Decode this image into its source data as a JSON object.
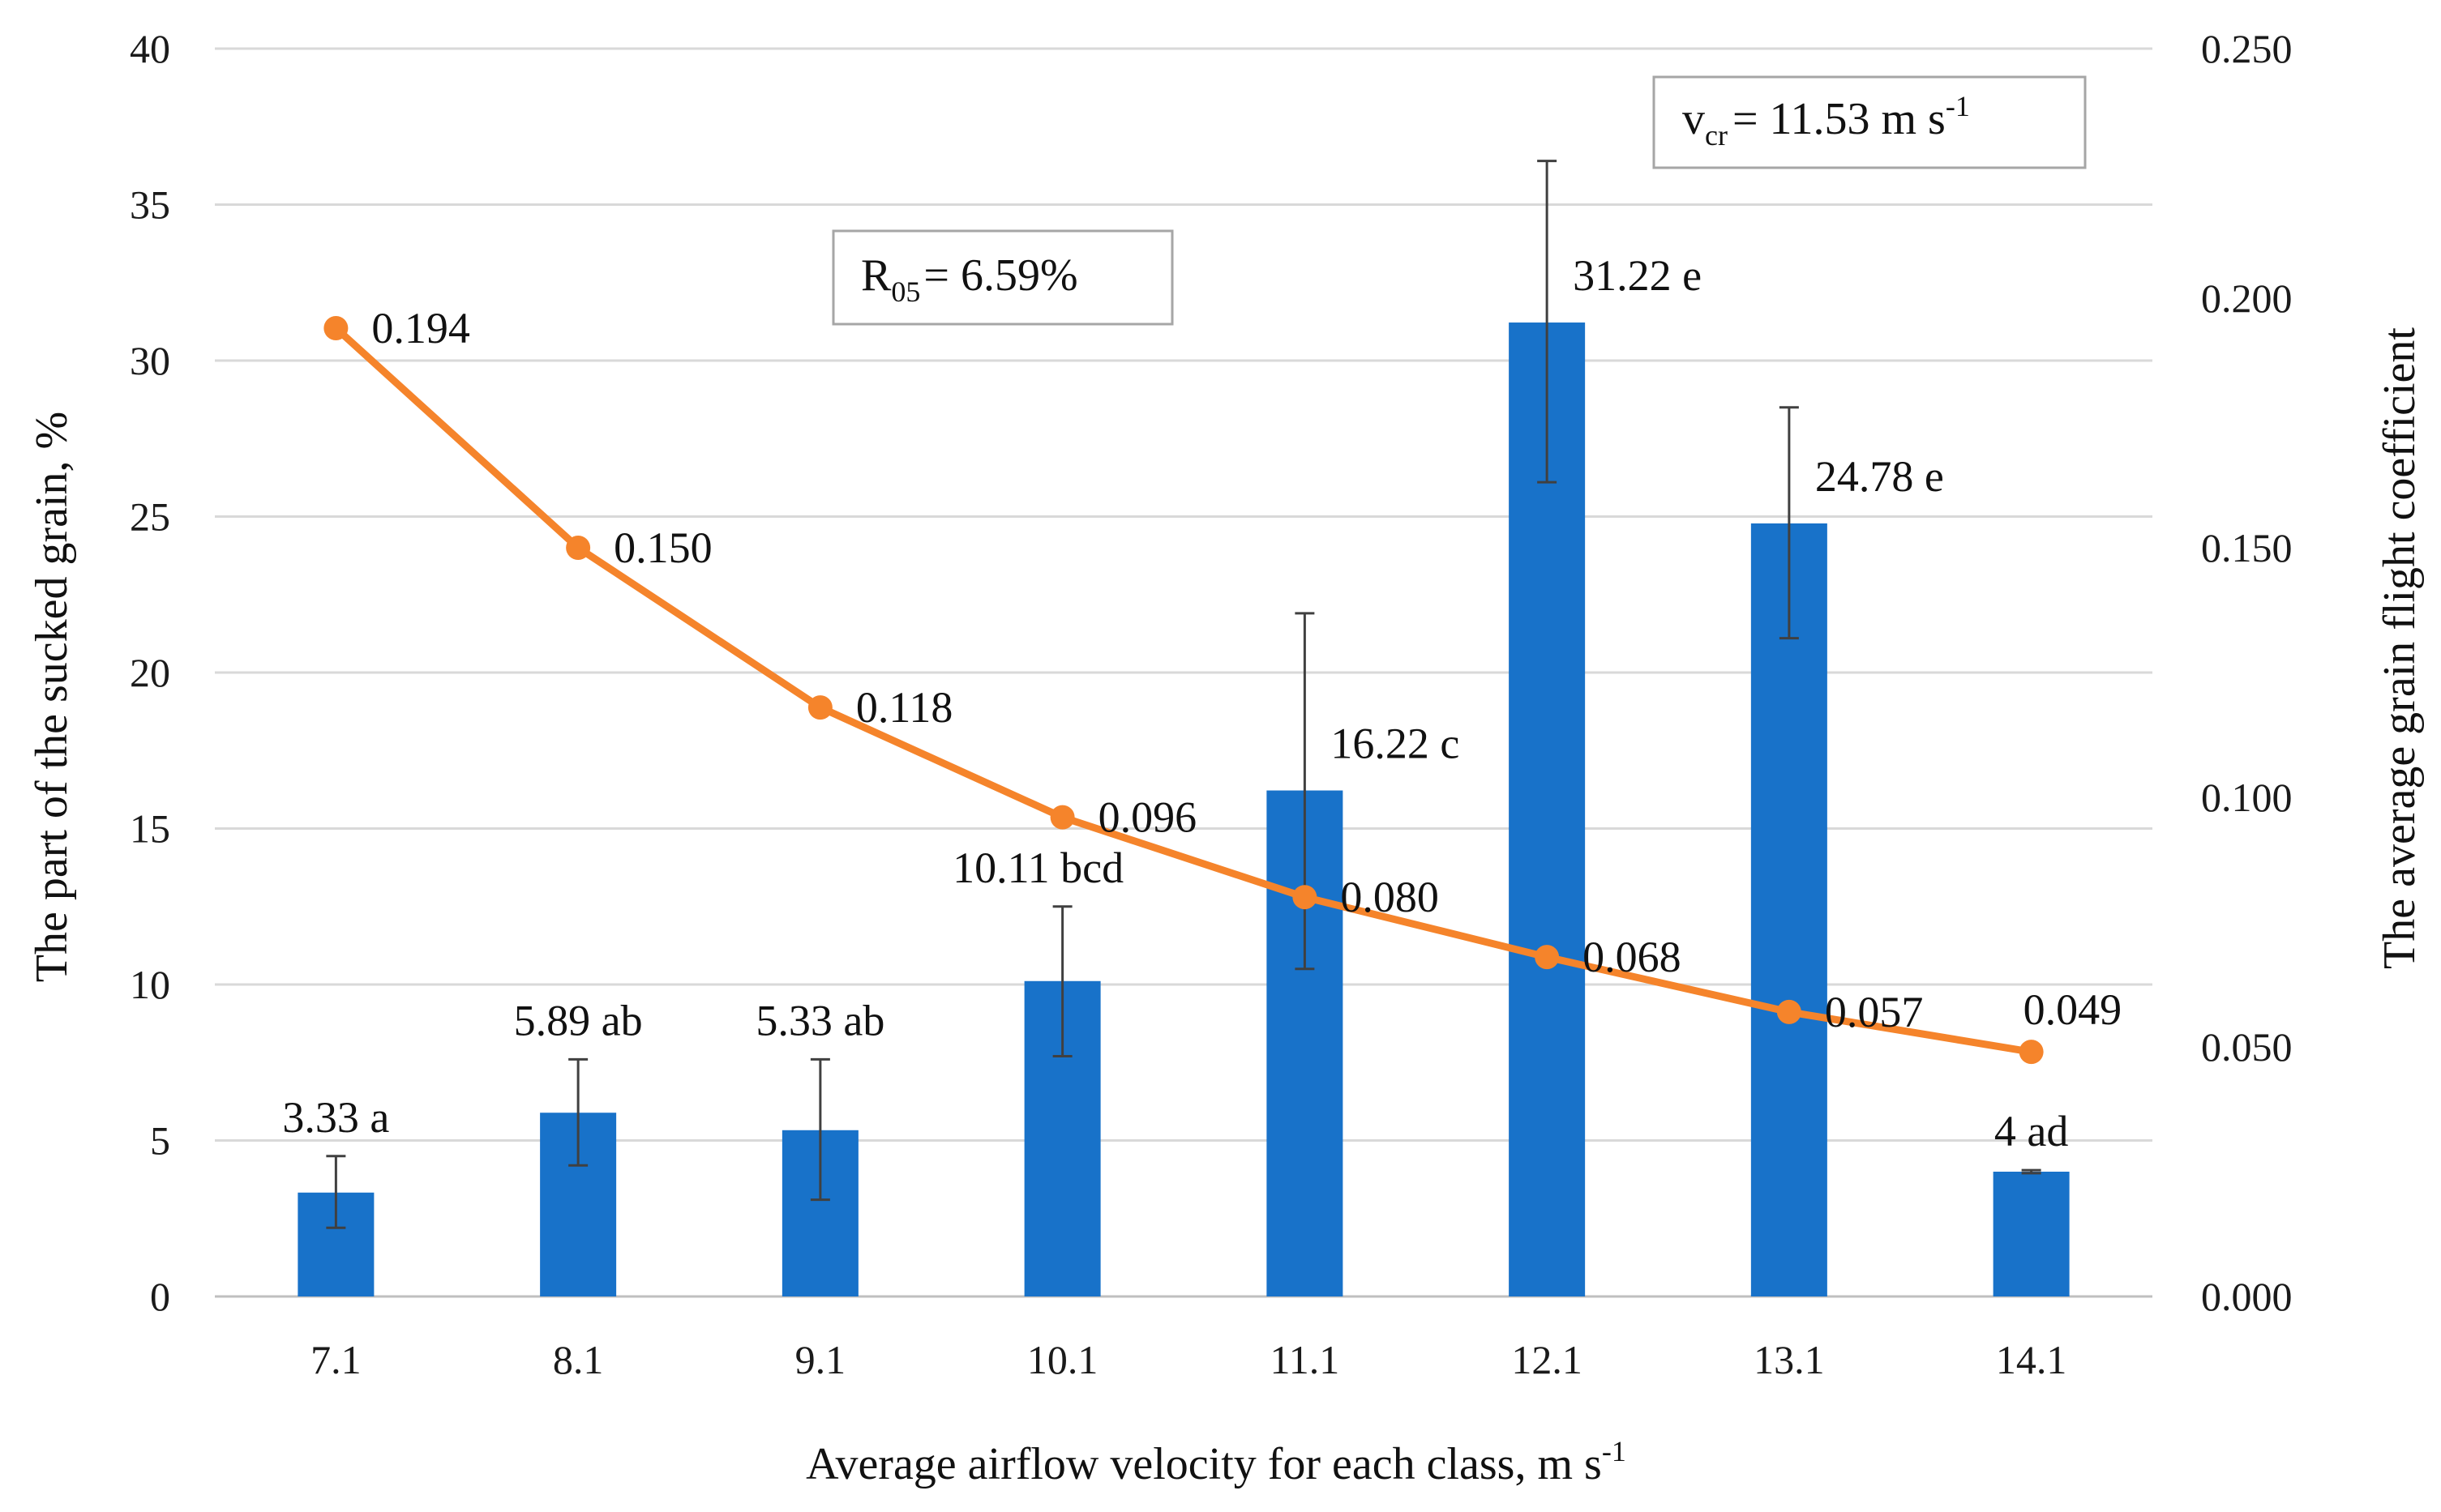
{
  "chart_data": {
    "type": "bar",
    "categories": [
      "7.1",
      "8.1",
      "9.1",
      "10.1",
      "11.1",
      "12.1",
      "13.1",
      "14.1"
    ],
    "xlabel": "Average airflow velocity for each class, m s",
    "xlabel_sup": "-1",
    "ylabel": "The part of the sucked grain, %",
    "y2label": "The average grain  flight coefficient",
    "ylim": [
      0,
      40
    ],
    "yticks": [
      "0",
      "5",
      "10",
      "15",
      "20",
      "25",
      "30",
      "35",
      "40"
    ],
    "y2lim": [
      0,
      0.25
    ],
    "y2ticks": [
      "0.000",
      "0.050",
      "0.100",
      "0.150",
      "0.200",
      "0.250"
    ],
    "grid": true,
    "bars": {
      "color": "#1872C9",
      "values": [
        3.33,
        5.89,
        5.33,
        10.11,
        16.22,
        31.22,
        24.78,
        4
      ],
      "error_high": [
        4.5,
        7.6,
        7.6,
        12.5,
        21.9,
        36.4,
        28.5,
        4.05
      ],
      "error_low": [
        2.2,
        4.2,
        3.1,
        7.7,
        10.5,
        26.1,
        21.1,
        3.95
      ],
      "labels": [
        "3.33 a",
        "5.89 ab",
        "5.33 ab",
        "10.11 bcd",
        "16.22 c",
        "31.22 e",
        "24.78 e",
        "4 ad"
      ]
    },
    "line": {
      "color": "#F5842B",
      "values": [
        0.194,
        0.15,
        0.118,
        0.096,
        0.08,
        0.068,
        0.057,
        0.049
      ],
      "labels": [
        "0.194",
        "0.150",
        "0.118",
        "0.096",
        "0.080",
        "0.068",
        "0.057",
        "0.049"
      ]
    },
    "annotations": {
      "r05": {
        "main": "R",
        "sub": "05",
        "rest": "= 6.59%"
      },
      "vcr": {
        "main": "v",
        "sub": "cr",
        "rest": "= 11.53  m s",
        "sup": "-1"
      }
    }
  }
}
